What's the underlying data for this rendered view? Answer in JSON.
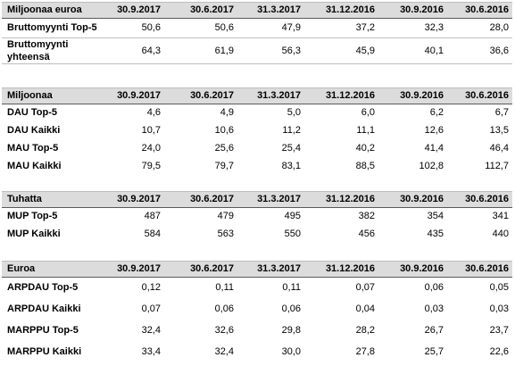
{
  "tables": [
    {
      "header": [
        "Miljoonaa euroa",
        "30.9.2017",
        "30.6.2017",
        "31.3.2017",
        "31.12.2016",
        "30.9.2016",
        "30.6.2016"
      ],
      "rows": [
        {
          "label": "Bruttomyynti Top-5",
          "values": [
            "50,6",
            "50,6",
            "47,9",
            "37,2",
            "32,3",
            "28,0"
          ]
        },
        {
          "label": "Bruttomyynti yhteensä",
          "values": [
            "64,3",
            "61,9",
            "56,3",
            "45,9",
            "40,1",
            "36,6"
          ]
        }
      ]
    },
    {
      "header": [
        "Miljoonaa",
        "30.9.2017",
        "30.6.2017",
        "31.3.2017",
        "31.12.2016",
        "30.9.2016",
        "30.6.2016"
      ],
      "rows": [
        {
          "label": "DAU Top-5",
          "values": [
            "4,6",
            "4,9",
            "5,0",
            "6,0",
            "6,2",
            "6,7"
          ]
        },
        {
          "label": "DAU Kaikki",
          "values": [
            "10,7",
            "10,6",
            "11,2",
            "11,1",
            "12,6",
            "13,5"
          ]
        },
        {
          "label": "MAU Top-5",
          "values": [
            "24,0",
            "25,6",
            "25,4",
            "40,2",
            "41,4",
            "46,4"
          ]
        },
        {
          "label": "MAU Kaikki",
          "values": [
            "79,5",
            "79,7",
            "83,1",
            "88,5",
            "102,8",
            "112,7"
          ]
        }
      ]
    },
    {
      "header": [
        "Tuhatta",
        "30.9.2017",
        "30.6.2017",
        "31.3.2017",
        "31.12.2016",
        "30.9.2016",
        "30.6.2016"
      ],
      "rows": [
        {
          "label": "MUP Top-5",
          "values": [
            "487",
            "479",
            "495",
            "382",
            "354",
            "341"
          ]
        },
        {
          "label": "MUP Kaikki",
          "values": [
            "584",
            "563",
            "550",
            "456",
            "435",
            "440"
          ]
        }
      ]
    },
    {
      "header": [
        "Euroa",
        "30.9.2017",
        "30.6.2017",
        "31.3.2017",
        "31.12.2016",
        "30.9.2016",
        "30.6.2016"
      ],
      "rows": [
        {
          "label": "ARPDAU Top-5",
          "values": [
            "0,12",
            "0,11",
            "0,11",
            "0,07",
            "0,06",
            "0,05"
          ]
        },
        {
          "label": "ARPDAU Kaikki",
          "values": [
            "0,07",
            "0,06",
            "0,06",
            "0,04",
            "0,03",
            "0,03"
          ]
        },
        {
          "label": "MARPPU Top-5",
          "values": [
            "32,4",
            "32,6",
            "29,8",
            "28,2",
            "26,7",
            "23,7"
          ]
        },
        {
          "label": "MARPPU Kaikki",
          "values": [
            "33,4",
            "32,4",
            "30,0",
            "27,8",
            "25,7",
            "22,6"
          ]
        }
      ]
    }
  ]
}
